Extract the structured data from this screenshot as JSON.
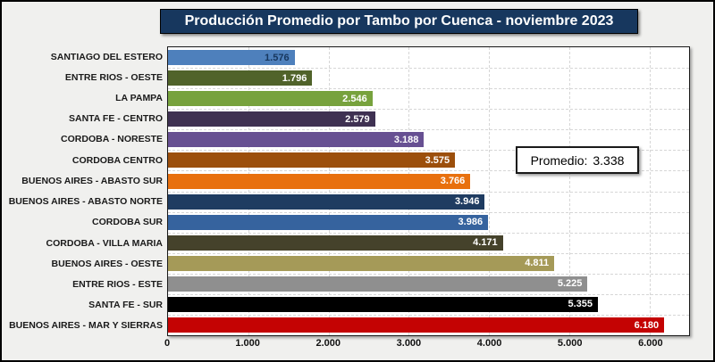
{
  "title": "Producción Promedio por Tambo por Cuenca -  noviembre 2023",
  "annotation": {
    "label": "Promedio:",
    "value": "3.338"
  },
  "colors": {
    "title_bg": "#17375e",
    "title_text": "#ffffff",
    "frame_bg": "#f0f0ee",
    "plot_bg": "#ffffff",
    "gridline": "#d6d6d6",
    "average_line_box_border": "#1a1a1a"
  },
  "chart_data": {
    "type": "bar",
    "orientation": "horizontal",
    "title": "Producción Promedio por Tambo por Cuenca -  noviembre 2023",
    "xlabel": "",
    "ylabel": "",
    "grid": "dashed",
    "legend": "none",
    "xlim": [
      0,
      6490
    ],
    "x_ticks": [
      0,
      1000,
      2000,
      3000,
      4000,
      5000,
      6000
    ],
    "x_tick_labels": [
      "0",
      "1.000",
      "2.000",
      "3.000",
      "4.000",
      "5.000",
      "6.000"
    ],
    "average_annotation": "Promedio: 3.338",
    "average_value": 3338,
    "categories": [
      "SANTIAGO DEL ESTERO",
      "ENTRE RIOS - OESTE",
      "LA PAMPA",
      "SANTA FE - CENTRO",
      "CORDOBA - NORESTE",
      "CORDOBA CENTRO",
      "BUENOS AIRES - ABASTO SUR",
      "BUENOS AIRES - ABASTO NORTE",
      "CORDOBA SUR",
      "CORDOBA - VILLA MARIA",
      "BUENOS AIRES - OESTE",
      "ENTRE RIOS - ESTE",
      "SANTA FE - SUR",
      "BUENOS AIRES - MAR Y SIERRAS"
    ],
    "values": [
      1576,
      1796,
      2546,
      2579,
      3188,
      3575,
      3766,
      3946,
      3986,
      4171,
      4811,
      5225,
      5355,
      6180
    ],
    "value_labels": [
      "1.576",
      "1.796",
      "2.546",
      "2.579",
      "3.188",
      "3.575",
      "3.766",
      "3.946",
      "3.986",
      "4.171",
      "4.811",
      "5.225",
      "5.355",
      "6.180"
    ],
    "bar_colors": [
      "#4e80bc",
      "#50632a",
      "#77a23d",
      "#3f3152",
      "#675092",
      "#9c4f0c",
      "#e8700e",
      "#1f3c61",
      "#36639e",
      "#45422b",
      "#a59a58",
      "#8f8f8f",
      "#000000",
      "#c40303"
    ],
    "value_label_colors": [
      "#17375e",
      "#ffffff",
      "#ffffff",
      "#ffffff",
      "#ffffff",
      "#ffffff",
      "#ffffff",
      "#ffffff",
      "#ffffff",
      "#ffffff",
      "#ffffff",
      "#ffffff",
      "#ffffff",
      "#ffffff"
    ]
  }
}
